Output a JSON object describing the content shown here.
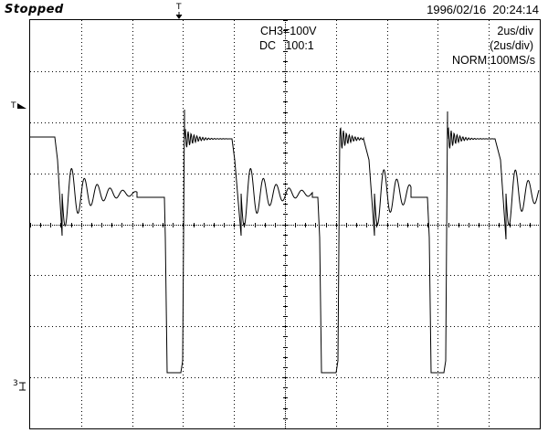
{
  "header": {
    "status": "Stopped",
    "datetime": "1996/02/16  20:24:14"
  },
  "channel": {
    "name_scale": "CH3=100V",
    "coupling_probe": "DC   100:1"
  },
  "timebase": {
    "main": "2us/div",
    "zoom": "(2us/div)",
    "mode_rate": "NORM:100MS/s"
  },
  "markers": {
    "trigger_time": "T",
    "trigger_level": "T",
    "ground": "3"
  },
  "display": {
    "divisions_x": 10,
    "divisions_y": 8,
    "trace_color": "#000000",
    "grid_color": "#000000"
  }
}
